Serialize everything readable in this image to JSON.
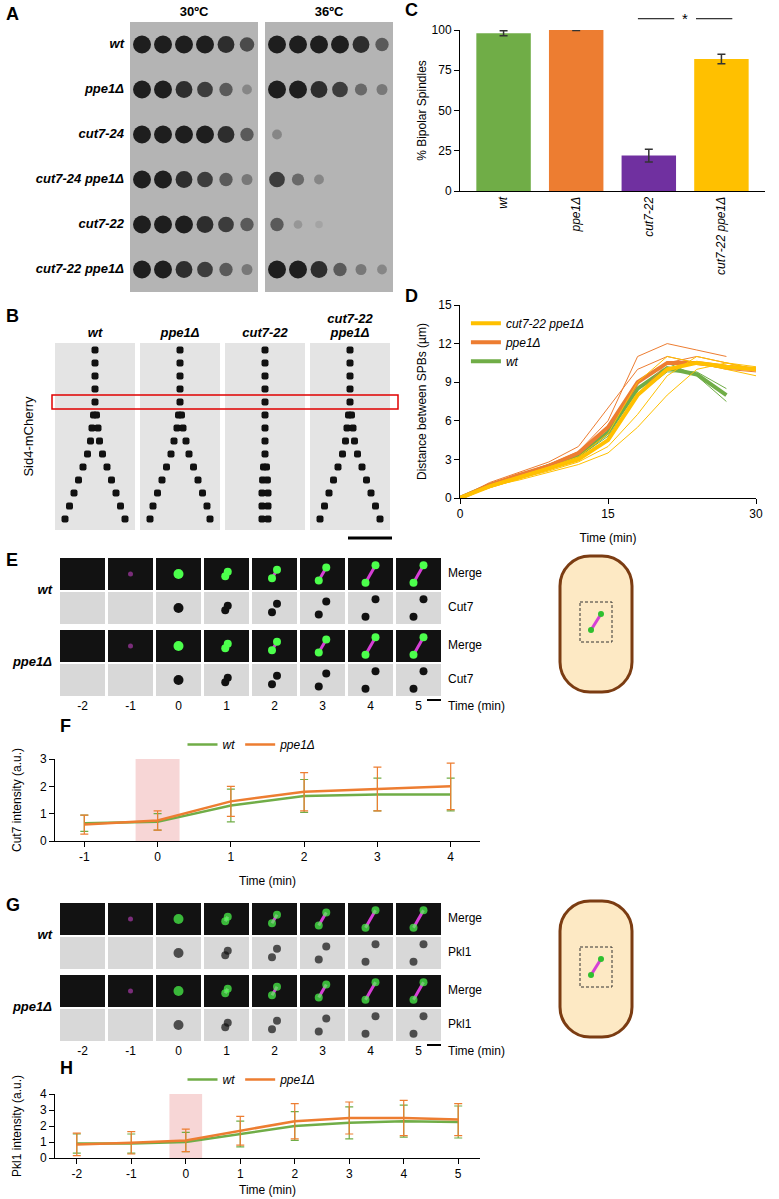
{
  "spot_assay": {
    "letter": "A",
    "columns": [
      "30ºC",
      "36ºC"
    ],
    "rows": [
      {
        "label": "wt",
        "growth": [
          [
            1,
            1,
            1,
            1,
            0.9,
            0.7
          ],
          [
            1,
            1,
            1,
            1,
            0.9,
            0.6
          ]
        ]
      },
      {
        "label": "ppe1Δ",
        "growth": [
          [
            1,
            1,
            0.9,
            0.8,
            0.6,
            0.3
          ],
          [
            1,
            1,
            0.9,
            0.8,
            0.5,
            0.4
          ]
        ]
      },
      {
        "label": "cut7-24",
        "growth": [
          [
            1,
            1,
            1,
            1,
            0.9,
            0.6
          ],
          [
            0.3,
            0,
            0,
            0,
            0,
            0
          ]
        ]
      },
      {
        "label": "cut7-24 ppe1Δ",
        "growth": [
          [
            1,
            1,
            0.9,
            0.8,
            0.6,
            0.4
          ],
          [
            0.8,
            0.5,
            0.3,
            0,
            0,
            0
          ]
        ]
      },
      {
        "label": "cut7-22",
        "growth": [
          [
            1,
            1,
            1,
            0.9,
            0.8,
            0.6
          ],
          [
            0.6,
            0.2,
            0.1,
            0,
            0,
            0
          ]
        ]
      },
      {
        "label": "cut7-22 ppe1Δ",
        "growth": [
          [
            1,
            1,
            0.9,
            0.8,
            0.6,
            0.4
          ],
          [
            1,
            1,
            0.9,
            0.6,
            0.4,
            0.3
          ]
        ]
      }
    ]
  },
  "kymograph": {
    "letter": "B",
    "label": "Sid4-mCherry",
    "highlight_row": 4,
    "columns": [
      {
        "label": "wt",
        "separation": [
          0,
          0,
          0,
          0,
          0,
          0.05,
          0.1,
          0.15,
          0.25,
          0.4,
          0.55,
          0.7,
          0.85,
          1
        ]
      },
      {
        "label": "ppe1Δ",
        "separation": [
          0,
          0,
          0,
          0,
          0,
          0.05,
          0.1,
          0.2,
          0.3,
          0.45,
          0.6,
          0.75,
          0.9,
          1
        ]
      },
      {
        "label": "cut7-22",
        "separation": [
          0,
          0,
          0,
          0,
          0,
          0,
          0,
          0,
          0,
          0.05,
          0.08,
          0.1,
          0.1,
          0.1
        ]
      },
      {
        "label": "cut7-22 ppe1Δ",
        "separation": [
          0,
          0,
          0,
          0,
          0,
          0.05,
          0.1,
          0.15,
          0.25,
          0.4,
          0.55,
          0.7,
          0.85,
          1
        ]
      }
    ]
  },
  "timelapse": [
    {
      "letter": "E",
      "channels": [
        "Merge",
        "Cut7"
      ],
      "strains": [
        "wt",
        "ppe1Δ"
      ],
      "times": [
        -2,
        -1,
        0,
        1,
        2,
        3,
        4,
        5
      ],
      "time_label": "Time (min)"
    },
    {
      "letter": "G",
      "channels": [
        "Merge",
        "Pkl1"
      ],
      "strains": [
        "wt",
        "ppe1Δ"
      ],
      "times": [
        -2,
        -1,
        0,
        1,
        2,
        3,
        4,
        5
      ],
      "time_label": "Time (min)"
    }
  ],
  "chart_data": [
    {
      "letter": "C",
      "type": "bar",
      "ylabel": "% Bipolar Spindles",
      "categories": [
        "wt",
        "ppe1Δ",
        "cut7-22",
        "cut7-22 ppe1Δ"
      ],
      "values": [
        98,
        100,
        22,
        82
      ],
      "errors": [
        1.5,
        0.3,
        4,
        3
      ],
      "colors": [
        "#70ad47",
        "#ed7d31",
        "#7030a0",
        "#ffc000"
      ],
      "ylim": [
        0,
        100
      ],
      "yticks": [
        0,
        25,
        50,
        75,
        100
      ],
      "grid": false,
      "significance": {
        "text": "*",
        "between": [
          2,
          3
        ]
      }
    },
    {
      "letter": "D",
      "type": "line",
      "ylabel": "Distance between SPBs (µm)",
      "xlabel": "Time (min)",
      "x": [
        0,
        3,
        6,
        9,
        12,
        15,
        18,
        21,
        24,
        27,
        30
      ],
      "xlim": [
        0,
        30
      ],
      "xticks": [
        0,
        15,
        30
      ],
      "ylim": [
        0,
        15
      ],
      "yticks": [
        0,
        3,
        6,
        9,
        12,
        15
      ],
      "grid": false,
      "legend": "top left",
      "series": [
        {
          "name": "cut7-22 ppe1Δ",
          "color": "#ffc000",
          "values": [
            0,
            0.9,
            1.6,
            2.3,
            3,
            4.5,
            8,
            10,
            10.5,
            10.2,
            10
          ],
          "individual": [
            [
              0,
              0.8,
              1.5,
              2.1,
              2.8,
              4,
              6.5,
              9.5,
              11,
              10.5,
              10
            ],
            [
              0,
              1,
              1.7,
              2.4,
              3.2,
              5,
              9,
              11,
              10.5,
              10,
              9.5
            ],
            [
              0,
              0.9,
              1.4,
              2,
              2.6,
              3.5,
              5.5,
              8,
              10,
              10.5,
              10.2
            ]
          ]
        },
        {
          "name": "ppe1Δ",
          "color": "#ed7d31",
          "values": [
            0,
            1,
            1.8,
            2.5,
            3.5,
            5.5,
            9,
            10.5,
            10.5,
            10.2,
            10
          ],
          "individual": [
            [
              0,
              1.2,
              2,
              2.8,
              4,
              7,
              10,
              11,
              10.5,
              10,
              9.8
            ],
            [
              0,
              0.8,
              1.5,
              2.2,
              3,
              4.5,
              8,
              10.5,
              11,
              10.5,
              10
            ],
            [
              0,
              1,
              1.8,
              2.6,
              3.6,
              6,
              11,
              12,
              11.5,
              11,
              null
            ]
          ]
        },
        {
          "name": "wt",
          "color": "#70ad47",
          "values": [
            0,
            1,
            1.7,
            2.5,
            3.3,
            5.1,
            8.5,
            10.1,
            9.6,
            8,
            null
          ],
          "individual": [
            [
              0,
              1.1,
              1.8,
              2.6,
              3.5,
              5.5,
              9,
              10.5,
              9.5,
              7.5,
              null
            ],
            [
              0,
              0.9,
              1.6,
              2.4,
              3.2,
              4.8,
              8,
              9.8,
              9.8,
              8.5,
              null
            ]
          ]
        }
      ]
    },
    {
      "letter": "F",
      "type": "line",
      "ylabel": "Cut7 intensity (a.u.)",
      "xlabel": "Time (min)",
      "x": [
        -1,
        0,
        1,
        2,
        3,
        4
      ],
      "xlim": [
        -1.4,
        4.4
      ],
      "xticks": [
        -1,
        0,
        1,
        2,
        3,
        4
      ],
      "ylim": [
        0,
        3
      ],
      "yticks": [
        0,
        1,
        2,
        3
      ],
      "grid": false,
      "legend": "top",
      "highlight_x": 0,
      "series": [
        {
          "name": "wt",
          "color": "#70ad47",
          "values": [
            0.65,
            0.7,
            1.3,
            1.65,
            1.7,
            1.7
          ],
          "errors": [
            0.3,
            0.3,
            0.6,
            0.6,
            0.6,
            0.6
          ]
        },
        {
          "name": "ppe1Δ",
          "color": "#ed7d31",
          "values": [
            0.6,
            0.75,
            1.45,
            1.8,
            1.9,
            2.0
          ],
          "errors": [
            0.35,
            0.35,
            0.55,
            0.7,
            0.8,
            0.85
          ]
        }
      ]
    },
    {
      "letter": "H",
      "type": "line",
      "ylabel": "Pkl1 intensity (a.u.)",
      "xlabel": "Time (min)",
      "x": [
        -2,
        -1,
        0,
        1,
        2,
        3,
        4,
        5
      ],
      "xlim": [
        -2.4,
        5.4
      ],
      "xticks": [
        -2,
        -1,
        0,
        1,
        2,
        3,
        4,
        5
      ],
      "ylim": [
        0,
        4
      ],
      "yticks": [
        0,
        1,
        2,
        3,
        4
      ],
      "grid": false,
      "legend": "top",
      "highlight_x": 0,
      "series": [
        {
          "name": "wt",
          "color": "#70ad47",
          "values": [
            0.9,
            0.9,
            1.0,
            1.5,
            2.0,
            2.2,
            2.3,
            2.25
          ],
          "errors": [
            0.6,
            0.6,
            0.6,
            0.8,
            0.9,
            1.0,
            1.0,
            1.0
          ]
        },
        {
          "name": "ppe1Δ",
          "color": "#ed7d31",
          "values": [
            0.85,
            0.95,
            1.1,
            1.7,
            2.3,
            2.5,
            2.5,
            2.4
          ],
          "errors": [
            0.7,
            0.7,
            0.7,
            0.9,
            1.1,
            1.0,
            1.1,
            1.0
          ]
        }
      ]
    }
  ]
}
